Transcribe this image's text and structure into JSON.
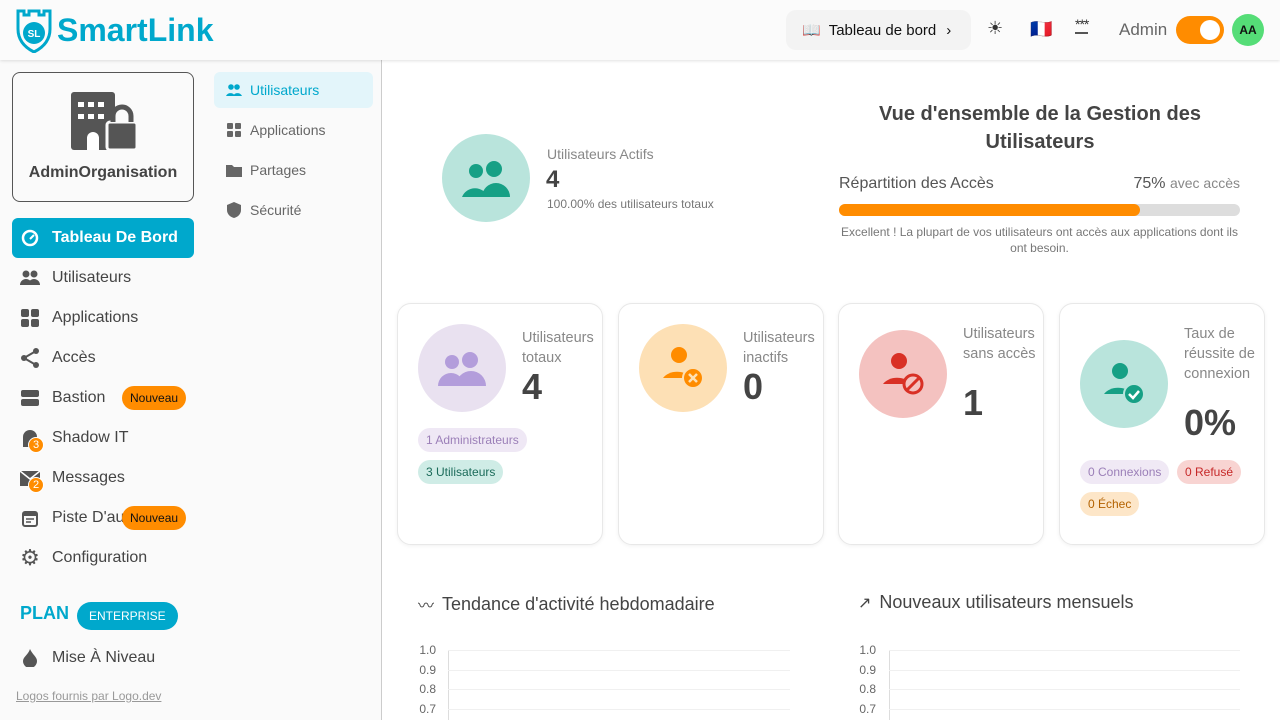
{
  "header": {
    "brand": "SmartLink",
    "logo_text": "SL",
    "breadcrumb": "Tableau de bord",
    "admin_label": "Admin",
    "admin_toggle_on": true,
    "avatar": "AA",
    "flag": "🇫🇷"
  },
  "sidebar": {
    "org_name": "AdminOrganisation",
    "items": [
      {
        "label": "Tableau De Bord",
        "icon": "gauge-icon",
        "active": true
      },
      {
        "label": "Utilisateurs",
        "icon": "users-icon"
      },
      {
        "label": "Applications",
        "icon": "grid-icon"
      },
      {
        "label": "Accès",
        "icon": "share-icon"
      },
      {
        "label": "Bastion",
        "icon": "server-icon",
        "badge": "Nouveau"
      },
      {
        "label": "Shadow IT",
        "icon": "ghost-icon",
        "count": "3"
      },
      {
        "label": "Messages",
        "icon": "mail-icon",
        "count": "2"
      },
      {
        "label": "Piste D'au",
        "icon": "calendar-icon",
        "badge": "Nouveau"
      },
      {
        "label": "Configuration",
        "icon": "gear-icon"
      }
    ],
    "plan_label": "PLAN",
    "plan_badge": "ENTERPRISE",
    "upgrade": "Mise À Niveau",
    "logos_credit": "Logos fournis par Logo.dev"
  },
  "subnav": {
    "items": [
      {
        "label": "Utilisateurs",
        "active": true
      },
      {
        "label": "Applications"
      },
      {
        "label": "Partages"
      },
      {
        "label": "Sécurité"
      }
    ]
  },
  "overview": {
    "active_label": "Utilisateurs Actifs",
    "active_value": "4",
    "active_sub": "100.00% des utilisateurs totaux",
    "title": "Vue d'ensemble de la Gestion des Utilisateurs",
    "access_label": "Répartition des Accès",
    "access_pct": "75%",
    "access_suffix": "avec accès",
    "access_fraction": 0.75,
    "access_msg": "Excellent ! La plupart de vos utilisateurs ont accès aux applications dont ils ont besoin."
  },
  "cards": [
    {
      "label": "Utilisateurs totaux",
      "value": "4",
      "pills": [
        "1 Administrateurs",
        "3 Utilisateurs"
      ]
    },
    {
      "label": "Utilisateurs inactifs",
      "value": "0"
    },
    {
      "label": "Utilisateurs sans accès",
      "value": "1"
    },
    {
      "label": "Taux de réussite de connexion",
      "value": "0%",
      "pills": [
        "0 Connexions",
        "0 Refusé",
        "0 Échec"
      ]
    }
  ],
  "charts": [
    {
      "title": "Tendance d'activité hebdomadaire",
      "icon": "activity-icon",
      "y_ticks": [
        "1.0",
        "0.9",
        "0.8",
        "0.7"
      ]
    },
    {
      "title": "Nouveaux utilisateurs mensuels",
      "icon": "trending-up-icon",
      "y_ticks": [
        "1.0",
        "0.9",
        "0.8",
        "0.7"
      ]
    }
  ],
  "colors": {
    "accent": "#00a8cc",
    "orange": "#ff8c00",
    "green": "#16a085",
    "purple": "#b39ddb",
    "red": "#d93025"
  }
}
